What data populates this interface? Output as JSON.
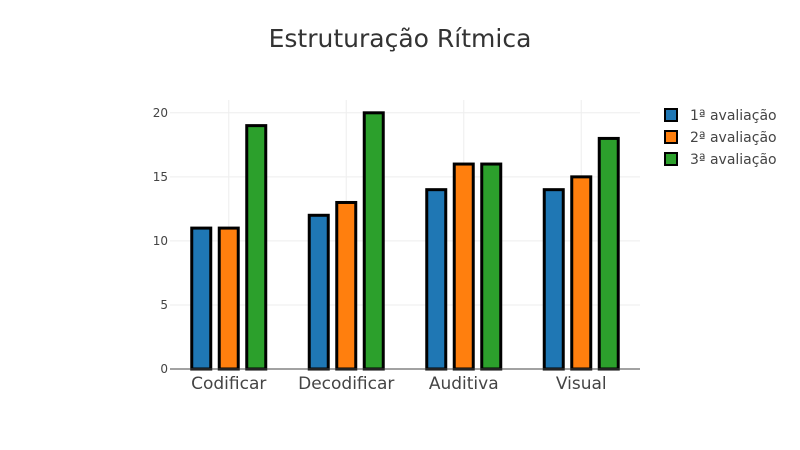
{
  "chart_data": {
    "type": "bar",
    "title": "Estruturação Rítmica",
    "categories": [
      "Codificar",
      "Decodificar",
      "Auditiva",
      "Visual"
    ],
    "series": [
      {
        "name": "1ª avaliação",
        "color": "#1f77b4",
        "values": [
          11,
          12,
          14,
          14
        ]
      },
      {
        "name": "2ª avaliação",
        "color": "#ff7f0e",
        "values": [
          11,
          13,
          16,
          15
        ]
      },
      {
        "name": "3ª avaliação",
        "color": "#2ca02c",
        "values": [
          19,
          20,
          16,
          18
        ]
      }
    ],
    "xlabel": "",
    "ylabel": "",
    "ylim": [
      0,
      21
    ],
    "yticks": [
      0,
      5,
      10,
      15,
      20
    ],
    "grid": true,
    "legend_position": "top-right",
    "bar_outline_color": "#000000"
  }
}
